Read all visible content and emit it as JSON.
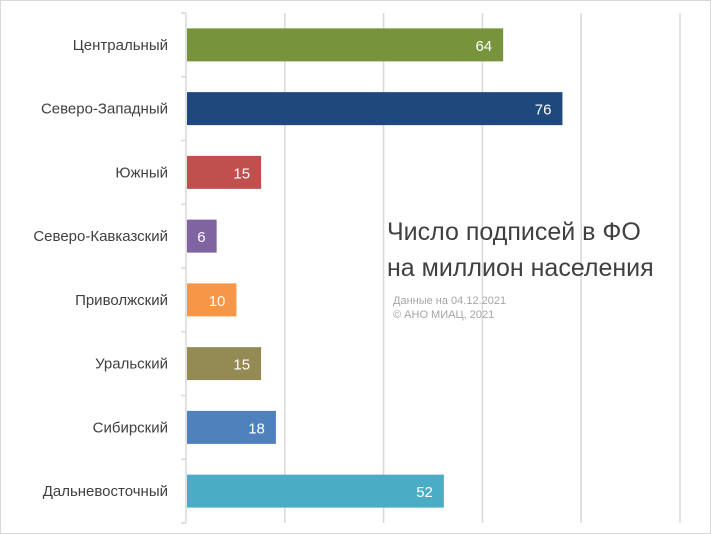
{
  "chart_data": {
    "type": "bar",
    "orientation": "horizontal",
    "title_lines": [
      "Число подписей в ФО",
      "на миллион населения"
    ],
    "notes": [
      "Данные на 04.12.2021",
      "© АНО МИАЦ, 2021"
    ],
    "categories": [
      "Центральный",
      "Северо-Западный",
      "Южный",
      "Северо-Кавказский",
      "Приволжский",
      "Уральский",
      "Сибирский",
      "Дальневосточный"
    ],
    "values": [
      64,
      76,
      15,
      6,
      10,
      15,
      18,
      52
    ],
    "colors": [
      "#77933c",
      "#1f497d",
      "#c0504d",
      "#8064a2",
      "#f79646",
      "#948a54",
      "#4f81bd",
      "#4bacc6"
    ],
    "xlim": [
      0,
      100
    ],
    "grid": true,
    "legend": false
  }
}
